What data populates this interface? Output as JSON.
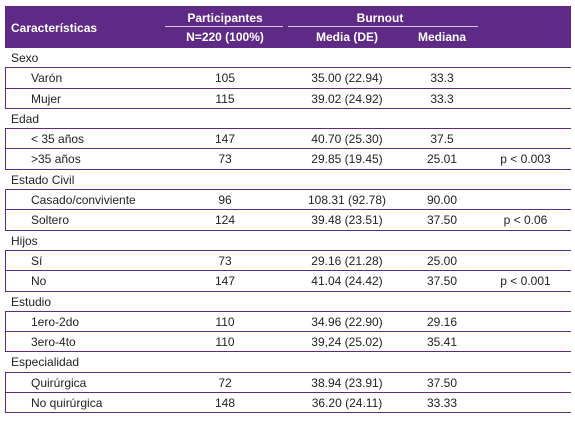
{
  "header": {
    "caracteristicas": "Características",
    "participantes": "Participantes",
    "n_total": "N=220 (100%)",
    "burnout": "Burnout",
    "media_de": "Media (DE)",
    "mediana": "Mediana"
  },
  "rows": [
    {
      "type": "group",
      "label": "Sexo"
    },
    {
      "type": "sub",
      "label": "Varón",
      "n": "105",
      "media": "35.00 (22.94)",
      "mediana": "33.3",
      "p": ""
    },
    {
      "type": "sub",
      "label": "Mujer",
      "n": "115",
      "media": "39.02 (24.92)",
      "mediana": "33.3",
      "p": ""
    },
    {
      "type": "group",
      "label": "Edad"
    },
    {
      "type": "sub",
      "label": "< 35 años",
      "n": "147",
      "media": "40.70 (25.30)",
      "mediana": "37.5",
      "p": ""
    },
    {
      "type": "sub",
      "label": ">35 años",
      "n": "73",
      "media": "29.85 (19.45)",
      "mediana": "25.01",
      "p": "p < 0.003"
    },
    {
      "type": "group",
      "label": "Estado Civil"
    },
    {
      "type": "sub",
      "label": "Casado/conviviente",
      "n": "96",
      "media": "108.31 (92.78)",
      "mediana": "90.00",
      "p": ""
    },
    {
      "type": "sub",
      "label": "Soltero",
      "n": "124",
      "media": "39.48 (23.51)",
      "mediana": "37.50",
      "p": "p < 0.06"
    },
    {
      "type": "group",
      "label": "Hijos"
    },
    {
      "type": "sub",
      "label": "Sí",
      "n": "73",
      "media": "29.16 (21.28)",
      "mediana": "25.00",
      "p": ""
    },
    {
      "type": "sub",
      "label": "No",
      "n": "147",
      "media": "41.04 (24.42)",
      "mediana": "37.50",
      "p": "p < 0.001"
    },
    {
      "type": "group",
      "label": "Estudio"
    },
    {
      "type": "sub",
      "label": "1ero-2do",
      "n": "110",
      "media": "34.96 (22.90)",
      "mediana": "29.16",
      "p": ""
    },
    {
      "type": "sub",
      "label": "3ero-4to",
      "n": "110",
      "media": "39,24 (25.02)",
      "mediana": "35.41",
      "p": ""
    },
    {
      "type": "group",
      "label": "Especialidad"
    },
    {
      "type": "sub",
      "label": "Quirúrgica",
      "n": "72",
      "media": "38.94 (23.91)",
      "mediana": "37.50",
      "p": ""
    },
    {
      "type": "sub",
      "label": "No quirúrgica",
      "n": "148",
      "media": "36.20 (24.11)",
      "mediana": "33.33",
      "p": ""
    }
  ]
}
